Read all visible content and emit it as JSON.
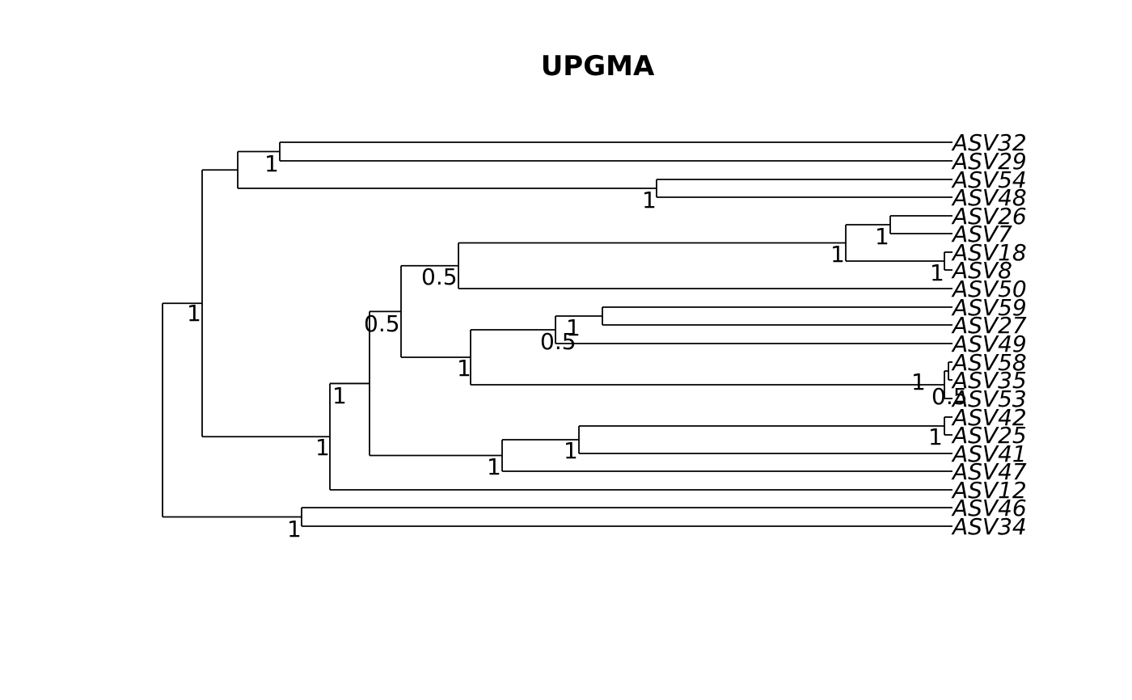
{
  "title": "UPGMA",
  "tips": [
    "ASV32",
    "ASV29",
    "ASV54",
    "ASV48",
    "ASV26",
    "ASV7",
    "ASV18",
    "ASV8",
    "ASV50",
    "ASV59",
    "ASV27",
    "ASV49",
    "ASV58",
    "ASV35",
    "ASV53",
    "ASV42",
    "ASV25",
    "ASV41",
    "ASV47",
    "ASV12",
    "ASV46",
    "ASV34"
  ],
  "support_labels": [
    "1",
    "1",
    "1",
    "1",
    "1",
    "0.5",
    "1",
    "0.5",
    "1",
    "0.5",
    "1",
    "0.5",
    "1",
    "1",
    "1",
    "1",
    "1",
    "1",
    "1",
    "1"
  ]
}
